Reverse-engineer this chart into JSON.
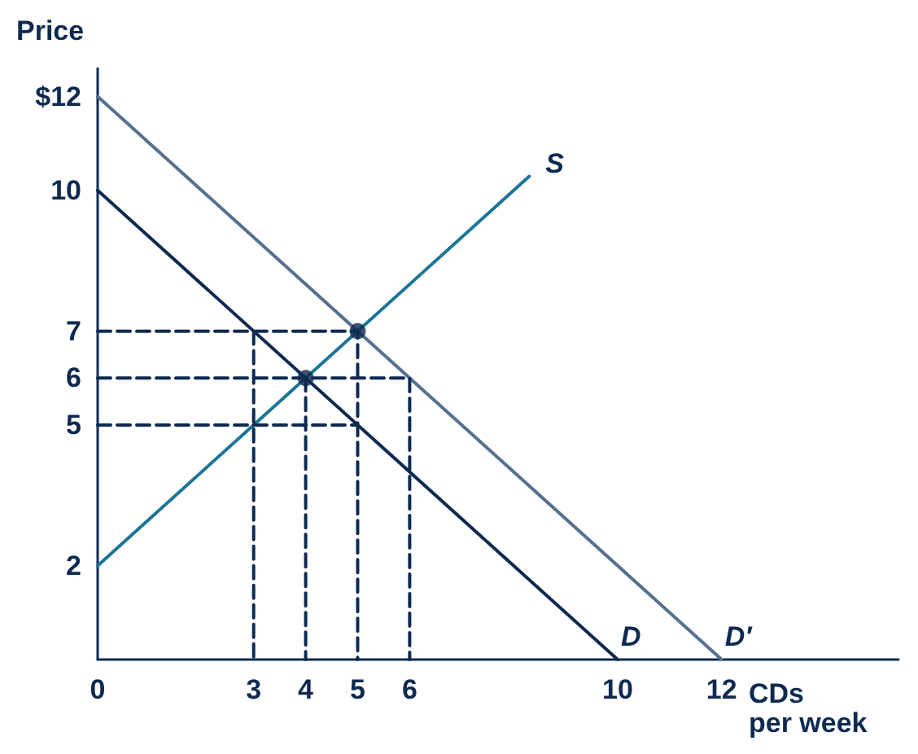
{
  "chart_data": {
    "type": "line",
    "xlabel": "CDs\nper week",
    "ylabel": "Price",
    "xlim": [
      0,
      15.4
    ],
    "ylim": [
      0,
      12.6
    ],
    "xticks": [
      0,
      3,
      4,
      5,
      6,
      10,
      12
    ],
    "yticks": [
      2,
      5,
      6,
      7,
      10,
      {
        "value": 12,
        "label": "$12"
      }
    ],
    "grid": false,
    "legend": false,
    "marker": "none",
    "series": [
      {
        "name": "S",
        "color": "#1b7596",
        "x": [
          0,
          8.3
        ],
        "values": [
          2,
          10.3
        ]
      },
      {
        "name": "D",
        "color": "#0e2a50",
        "x": [
          0,
          10
        ],
        "values": [
          10,
          0
        ]
      },
      {
        "name": "D′",
        "color": "#56718f",
        "x": [
          0,
          12
        ],
        "values": [
          12,
          0
        ]
      },
      {
        "color": "#0e2a50",
        "line_style": "dashed",
        "x": [
          0,
          5,
          5
        ],
        "values": [
          7,
          7,
          0
        ]
      },
      {
        "color": "#0e2a50",
        "line_style": "dashed",
        "x": [
          0,
          6,
          6
        ],
        "values": [
          6,
          6,
          0
        ]
      },
      {
        "color": "#0e2a50",
        "line_style": "dashed",
        "x": [
          0,
          5
        ],
        "values": [
          5,
          5
        ]
      },
      {
        "color": "#0e2a50",
        "line_style": "dashed",
        "x": [
          3,
          3
        ],
        "values": [
          7,
          0
        ]
      },
      {
        "color": "#0e2a50",
        "line_style": "dashed",
        "x": [
          4,
          4
        ],
        "values": [
          6,
          0
        ]
      },
      {
        "type": "scatter",
        "marker": "circle",
        "color": "#0e2a50",
        "x": [
          4,
          5
        ],
        "values": [
          6,
          7
        ]
      }
    ]
  }
}
